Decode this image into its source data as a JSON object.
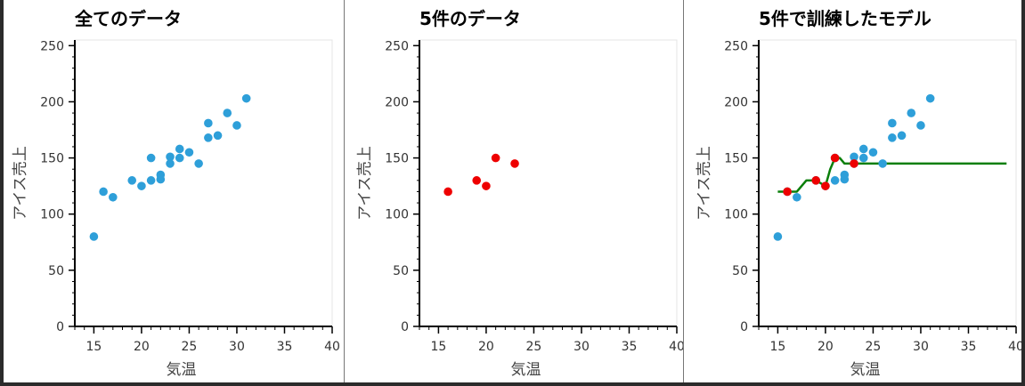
{
  "colors": {
    "actual": "#2e9fd9",
    "sample": "#ee0000",
    "model": "#0a7f0a"
  },
  "chart_data": [
    {
      "type": "scatter",
      "title": "全てのデータ",
      "xlabel": "気温",
      "ylabel": "アイス売上",
      "xlim": [
        13,
        40
      ],
      "ylim": [
        0,
        255
      ],
      "xticks": [
        15,
        20,
        25,
        30,
        35,
        40
      ],
      "yticks": [
        0,
        50,
        100,
        150,
        200,
        250
      ],
      "grid": false,
      "series": [
        {
          "color": "#2e9fd9",
          "x": [
            15,
            16,
            17,
            19,
            20,
            21,
            21,
            22,
            22,
            23,
            23,
            24,
            24,
            25,
            26,
            27,
            27,
            28,
            29,
            30,
            31
          ],
          "y": [
            80,
            120,
            115,
            130,
            125,
            150,
            130,
            131,
            135,
            145,
            151,
            150,
            158,
            155,
            145,
            168,
            181,
            170,
            190,
            179,
            203
          ]
        }
      ]
    },
    {
      "type": "scatter",
      "title": "5件のデータ",
      "xlabel": "気温",
      "ylabel": "アイス売上",
      "xlim": [
        13,
        40
      ],
      "ylim": [
        0,
        255
      ],
      "xticks": [
        15,
        20,
        25,
        30,
        35,
        40
      ],
      "yticks": [
        0,
        50,
        100,
        150,
        200,
        250
      ],
      "grid": false,
      "series": [
        {
          "color": "#ee0000",
          "x": [
            16,
            19,
            20,
            21,
            23
          ],
          "y": [
            120,
            130,
            125,
            150,
            145
          ]
        }
      ]
    },
    {
      "type": "scatter",
      "title": "5件で訓練したモデル",
      "xlabel": "気温",
      "ylabel": "アイス売上",
      "xlim": [
        13,
        40
      ],
      "ylim": [
        0,
        255
      ],
      "xticks": [
        15,
        20,
        25,
        30,
        35,
        40
      ],
      "yticks": [
        0,
        50,
        100,
        150,
        200,
        250
      ],
      "grid": false,
      "series": [
        {
          "color": "#2e9fd9",
          "x": [
            15,
            16,
            17,
            19,
            20,
            21,
            21,
            22,
            22,
            23,
            23,
            24,
            24,
            25,
            26,
            27,
            27,
            28,
            29,
            30,
            31
          ],
          "y": [
            80,
            120,
            115,
            130,
            125,
            150,
            130,
            131,
            135,
            145,
            151,
            150,
            158,
            155,
            145,
            168,
            181,
            170,
            190,
            179,
            203
          ]
        },
        {
          "color": "#ee0000",
          "x": [
            16,
            19,
            20,
            21,
            23
          ],
          "y": [
            120,
            130,
            125,
            150,
            145
          ]
        },
        {
          "type": "line",
          "color": "#0a7f0a",
          "x": [
            15,
            16,
            17,
            18,
            19,
            20,
            20.5,
            21,
            21.5,
            22,
            23,
            24,
            25,
            27,
            30,
            35,
            39
          ],
          "y": [
            120,
            120,
            120,
            130,
            130,
            125,
            140,
            150,
            150,
            145,
            145,
            145,
            145,
            145,
            145,
            145,
            145
          ]
        }
      ]
    }
  ]
}
